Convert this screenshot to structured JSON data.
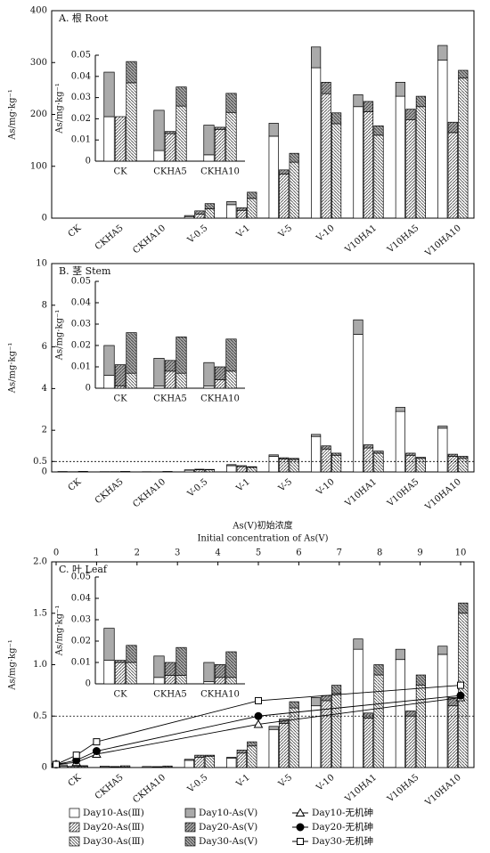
{
  "chart_data": [
    {
      "type": "bar",
      "title": "A. 根 Root",
      "ylabel": "As/mg·kg⁻¹",
      "categories": [
        "CK",
        "CKHA5",
        "CKHA10",
        "V-0.5",
        "V-1",
        "V-5",
        "V-10",
        "V10HA1",
        "V10HA5",
        "V10HA10"
      ],
      "ylim": [
        0,
        400
      ],
      "yticks": [
        0,
        100,
        200,
        300,
        400
      ],
      "series": [
        {
          "color": "#ffffff",
          "pattern": "none",
          "values": [
            0.021,
            0.005,
            0.003,
            3,
            26,
            158,
            290,
            215,
            235,
            305
          ]
        },
        {
          "color": "#ffffff",
          "pattern": "hatch-up",
          "values": [
            0.021,
            0.013,
            0.015,
            8,
            15,
            85,
            240,
            205,
            190,
            165
          ]
        },
        {
          "color": "#ffffff",
          "pattern": "hatch-down",
          "values": [
            0.037,
            0.026,
            0.023,
            18,
            38,
            108,
            182,
            160,
            215,
            270
          ]
        },
        {
          "color": "#aaaaaa",
          "pattern": "none",
          "values": [
            0.021,
            0.019,
            0.014,
            2,
            6,
            25,
            40,
            23,
            27,
            28
          ]
        },
        {
          "color": "#aaaaaa",
          "pattern": "hatch-up",
          "values": [
            0,
            0.001,
            0.001,
            6,
            5,
            8,
            22,
            20,
            20,
            20
          ]
        },
        {
          "color": "#aaaaaa",
          "pattern": "hatch-down",
          "values": [
            0.01,
            0.009,
            0.009,
            10,
            12,
            17,
            21,
            18,
            20,
            15
          ]
        }
      ],
      "inset": {
        "ylabel": "As/mg·kg⁻¹",
        "categories": [
          "CK",
          "CKHA5",
          "CKHA10"
        ],
        "ylim": [
          0,
          0.05
        ],
        "yticks": [
          0,
          0.01,
          0.02,
          0.03,
          0.04,
          0.05
        ],
        "series": [
          {
            "color": "#ffffff",
            "pattern": "none",
            "values": [
              0.021,
              0.005,
              0.003
            ]
          },
          {
            "color": "#ffffff",
            "pattern": "hatch-up",
            "values": [
              0.021,
              0.013,
              0.015
            ]
          },
          {
            "color": "#ffffff",
            "pattern": "hatch-down",
            "values": [
              0.037,
              0.026,
              0.023
            ]
          },
          {
            "color": "#aaaaaa",
            "pattern": "none",
            "values": [
              0.021,
              0.019,
              0.014
            ]
          },
          {
            "color": "#aaaaaa",
            "pattern": "hatch-up",
            "values": [
              0,
              0.001,
              0.001
            ]
          },
          {
            "color": "#aaaaaa",
            "pattern": "hatch-down",
            "values": [
              0.01,
              0.009,
              0.009
            ]
          }
        ]
      }
    },
    {
      "type": "bar",
      "title": "B. 茎 Stem",
      "ylabel": "As/mg·kg⁻¹",
      "categories": [
        "CK",
        "CKHA5",
        "CKHA10",
        "V-0.5",
        "V-1",
        "V-5",
        "V-10",
        "V10HA1",
        "V10HA5",
        "V10HA10"
      ],
      "ylim": [
        0,
        10
      ],
      "yticks": [
        0,
        0.5,
        2,
        4,
        6,
        8,
        10
      ],
      "refline": 0.5,
      "series": [
        {
          "color": "#ffffff",
          "pattern": "none",
          "values": [
            0.006,
            0.001,
            0.001,
            0.08,
            0.3,
            0.75,
            1.7,
            6.6,
            2.9,
            2.1
          ]
        },
        {
          "color": "#ffffff",
          "pattern": "hatch-up",
          "values": [
            0.001,
            0.008,
            0.004,
            0.1,
            0.25,
            0.62,
            1.1,
            1.15,
            0.8,
            0.75
          ]
        },
        {
          "color": "#ffffff",
          "pattern": "hatch-down",
          "values": [
            0.007,
            0.007,
            0.008,
            0.1,
            0.22,
            0.6,
            0.8,
            0.9,
            0.65,
            0.65
          ]
        },
        {
          "color": "#aaaaaa",
          "pattern": "none",
          "values": [
            0.014,
            0.013,
            0.011,
            0.02,
            0.05,
            0.07,
            0.1,
            0.7,
            0.2,
            0.1
          ]
        },
        {
          "color": "#aaaaaa",
          "pattern": "hatch-up",
          "values": [
            0.01,
            0.005,
            0.006,
            0.03,
            0.05,
            0.06,
            0.15,
            0.15,
            0.1,
            0.1
          ]
        },
        {
          "color": "#aaaaaa",
          "pattern": "hatch-down",
          "values": [
            0.019,
            0.017,
            0.015,
            0.02,
            0.03,
            0.05,
            0.1,
            0.1,
            0.05,
            0.1
          ]
        }
      ],
      "inset": {
        "ylabel": "As/mg·kg⁻¹",
        "categories": [
          "CK",
          "CKHA5",
          "CKHA10"
        ],
        "ylim": [
          0,
          0.05
        ],
        "yticks": [
          0,
          0.01,
          0.02,
          0.03,
          0.04,
          0.05
        ],
        "series": [
          {
            "color": "#ffffff",
            "pattern": "none",
            "values": [
              0.006,
              0.001,
              0.001
            ]
          },
          {
            "color": "#ffffff",
            "pattern": "hatch-up",
            "values": [
              0.001,
              0.008,
              0.004
            ]
          },
          {
            "color": "#ffffff",
            "pattern": "hatch-down",
            "values": [
              0.007,
              0.007,
              0.008
            ]
          },
          {
            "color": "#aaaaaa",
            "pattern": "none",
            "values": [
              0.014,
              0.013,
              0.011
            ]
          },
          {
            "color": "#aaaaaa",
            "pattern": "hatch-up",
            "values": [
              0.01,
              0.005,
              0.006
            ]
          },
          {
            "color": "#aaaaaa",
            "pattern": "hatch-down",
            "values": [
              0.019,
              0.017,
              0.015
            ]
          }
        ]
      }
    },
    {
      "type": "bar",
      "title": "C. 叶 Leaf",
      "ylabel": "As/mg·kg⁻¹",
      "x2label": "As(Ⅴ)初始浓度",
      "x2label_en": "Initial concentration of As(Ⅴ)",
      "x2lim": [
        0,
        10
      ],
      "x2ticks": [
        0,
        1,
        2,
        3,
        4,
        5,
        6,
        7,
        8,
        9,
        10
      ],
      "categories": [
        "CK",
        "CKHA5",
        "CKHA10",
        "V-0.5",
        "V-1",
        "V-5",
        "V-10",
        "V10HA1",
        "V10HA5",
        "V10HA10"
      ],
      "ylim": [
        0,
        2
      ],
      "yticks": [
        0,
        0.5,
        {
          "value": 1,
          "label": "1.0"
        },
        1.5,
        {
          "value": 2,
          "label": "2.0"
        }
      ],
      "refline": 0.5,
      "legend": "bottom",
      "series": [
        {
          "name": "Day10-As(Ⅲ)",
          "color": "#ffffff",
          "pattern": "none",
          "values": [
            0.011,
            0.003,
            0.001,
            0.07,
            0.09,
            0.37,
            0.6,
            1.15,
            1.05,
            1.1
          ]
        },
        {
          "name": "Day20-As(Ⅲ)",
          "color": "#ffffff",
          "pattern": "hatch-up",
          "values": [
            0.01,
            0.004,
            0.003,
            0.1,
            0.14,
            0.43,
            0.65,
            0.48,
            0.5,
            0.6
          ]
        },
        {
          "name": "Day30-As(Ⅲ)",
          "color": "#ffffff",
          "pattern": "hatch-down",
          "values": [
            0.01,
            0.004,
            0.003,
            0.11,
            0.21,
            0.58,
            0.72,
            0.9,
            0.8,
            1.5
          ]
        },
        {
          "name": "Day10-As(Ⅴ)",
          "color": "#aaaaaa",
          "pattern": "none",
          "values": [
            0.015,
            0.01,
            0.009,
            0.01,
            0.01,
            0.03,
            0.08,
            0.1,
            0.1,
            0.08
          ]
        },
        {
          "name": "Day20-As(Ⅴ)",
          "color": "#aaaaaa",
          "pattern": "hatch-up",
          "values": [
            0.001,
            0.006,
            0.006,
            0.02,
            0.03,
            0.04,
            0.05,
            0.05,
            0.05,
            0.08
          ]
        },
        {
          "name": "Day30-As(Ⅴ)",
          "color": "#aaaaaa",
          "pattern": "hatch-down",
          "values": [
            0.008,
            0.013,
            0.012,
            0.01,
            0.04,
            0.06,
            0.08,
            0.1,
            0.1,
            0.1
          ]
        },
        {
          "name": "Day10-无机砷",
          "type": "line",
          "axis": "x2",
          "color": "#000000",
          "marker": "triangle",
          "marker_fill": "#ffffff",
          "x": [
            0,
            0.5,
            1,
            5,
            10
          ],
          "values": [
            0.03,
            0.05,
            0.13,
            0.42,
            0.68
          ]
        },
        {
          "name": "Day20-无机砷",
          "type": "line",
          "axis": "x2",
          "color": "#000000",
          "marker": "circle",
          "marker_fill": "#000000",
          "x": [
            0,
            0.5,
            1,
            5,
            10
          ],
          "values": [
            0.03,
            0.07,
            0.16,
            0.5,
            0.7
          ]
        },
        {
          "name": "Day30-无机砷",
          "type": "line",
          "axis": "x2",
          "color": "#000000",
          "marker": "square",
          "marker_fill": "#ffffff",
          "x": [
            0,
            0.5,
            1,
            5,
            10
          ],
          "values": [
            0.03,
            0.12,
            0.25,
            0.65,
            0.8
          ]
        }
      ],
      "inset": {
        "ylabel": "As/mg·kg⁻¹",
        "categories": [
          "CK",
          "CKHA5",
          "CKHA10"
        ],
        "ylim": [
          0,
          0.05
        ],
        "yticks": [
          0,
          0.01,
          0.02,
          0.03,
          0.04,
          0.05
        ],
        "series": [
          {
            "color": "#ffffff",
            "pattern": "none",
            "values": [
              0.011,
              0.003,
              0.001
            ]
          },
          {
            "color": "#ffffff",
            "pattern": "hatch-up",
            "values": [
              0.01,
              0.004,
              0.003
            ]
          },
          {
            "color": "#ffffff",
            "pattern": "hatch-down",
            "values": [
              0.01,
              0.004,
              0.003
            ]
          },
          {
            "color": "#aaaaaa",
            "pattern": "none",
            "values": [
              0.015,
              0.01,
              0.009
            ]
          },
          {
            "color": "#aaaaaa",
            "pattern": "hatch-up",
            "values": [
              0.001,
              0.006,
              0.006
            ]
          },
          {
            "color": "#aaaaaa",
            "pattern": "hatch-down",
            "values": [
              0.008,
              0.013,
              0.012
            ]
          }
        ]
      }
    }
  ]
}
